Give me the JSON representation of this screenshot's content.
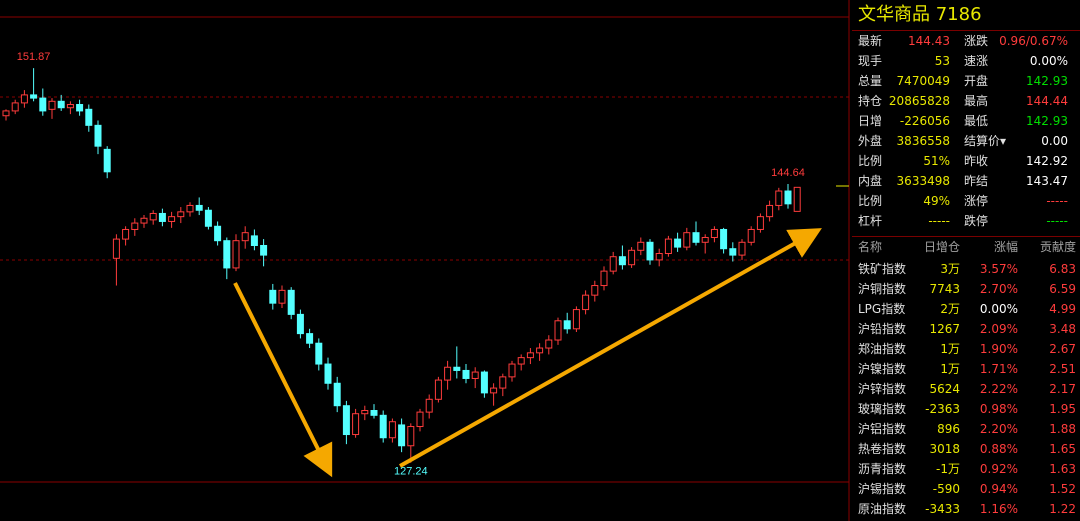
{
  "chart_data": {
    "type": "candlestick",
    "ylim": [
      126.1,
      155.0
    ],
    "up_color": "#ff3c3c",
    "down_color": "#54ffff",
    "open": [
      148.9,
      149.2,
      149.7,
      150.2,
      150.0,
      149.3,
      149.8,
      149.4,
      149.6,
      149.3,
      148.3,
      146.8,
      140.0,
      141.2,
      141.8,
      142.2,
      142.4,
      142.8,
      142.3,
      142.6,
      142.9,
      143.3,
      143.0,
      142.0,
      141.1,
      139.4,
      141.1,
      141.4,
      140.8,
      138.0,
      137.2,
      138.0,
      136.5,
      135.3,
      134.7,
      133.4,
      132.2,
      130.8,
      129.0,
      130.3,
      130.5,
      130.2,
      128.8,
      129.6,
      128.3,
      129.5,
      130.4,
      131.2,
      132.4,
      133.2,
      133.0,
      132.5,
      132.9,
      131.6,
      131.9,
      132.6,
      133.4,
      133.8,
      134.1,
      134.4,
      134.9,
      136.1,
      135.6,
      136.8,
      137.7,
      138.3,
      139.2,
      140.1,
      139.6,
      140.5,
      141.0,
      139.9,
      140.3,
      141.2,
      140.7,
      141.6,
      141.0,
      141.3,
      141.8,
      140.6,
      140.2,
      141.0,
      141.8,
      142.6,
      143.3,
      144.2,
      142.93
    ],
    "high": [
      149.3,
      149.9,
      150.5,
      151.87,
      150.6,
      150.0,
      150.2,
      149.8,
      149.9,
      149.6,
      148.6,
      147.0,
      141.5,
      142.0,
      142.5,
      142.7,
      143.0,
      143.1,
      142.9,
      143.2,
      143.5,
      143.8,
      143.2,
      142.3,
      141.3,
      141.5,
      142.0,
      141.8,
      141.2,
      138.4,
      138.3,
      138.2,
      136.8,
      135.6,
      135.0,
      133.8,
      132.6,
      131.1,
      130.6,
      130.8,
      130.9,
      130.5,
      130.0,
      130.0,
      129.7,
      130.6,
      131.5,
      132.6,
      133.6,
      134.5,
      133.4,
      133.2,
      133.0,
      132.2,
      132.8,
      133.6,
      134.0,
      134.4,
      134.7,
      135.2,
      136.3,
      136.6,
      137.0,
      138.0,
      138.6,
      139.5,
      140.4,
      140.8,
      140.7,
      141.3,
      141.2,
      140.6,
      141.4,
      141.6,
      141.9,
      142.3,
      141.5,
      142.0,
      141.9,
      141.0,
      141.2,
      142.0,
      142.8,
      143.6,
      144.4,
      144.64,
      144.44
    ],
    "low": [
      148.6,
      149.0,
      149.4,
      149.8,
      148.9,
      148.7,
      149.2,
      149.0,
      148.9,
      147.9,
      146.5,
      145.0,
      138.3,
      140.8,
      141.4,
      141.9,
      142.1,
      142.0,
      141.9,
      142.2,
      142.6,
      142.7,
      141.8,
      140.8,
      138.7,
      139.2,
      140.6,
      140.5,
      139.5,
      136.8,
      136.9,
      136.2,
      135.0,
      134.4,
      133.0,
      131.8,
      130.4,
      128.4,
      128.8,
      129.9,
      130.0,
      128.5,
      128.5,
      127.9,
      127.24,
      129.2,
      130.0,
      131.0,
      131.8,
      132.5,
      132.2,
      131.9,
      131.3,
      130.8,
      131.4,
      132.3,
      133.0,
      133.4,
      133.6,
      134.0,
      134.6,
      135.3,
      135.4,
      136.5,
      137.3,
      138.0,
      139.0,
      139.3,
      139.4,
      140.2,
      139.6,
      139.5,
      140.1,
      140.4,
      140.5,
      140.8,
      140.3,
      141.0,
      140.3,
      139.8,
      139.9,
      140.8,
      141.6,
      142.3,
      143.0,
      143.1,
      142.93
    ],
    "close": [
      149.2,
      149.7,
      150.2,
      150.0,
      149.2,
      149.8,
      149.4,
      149.6,
      149.2,
      148.3,
      147.0,
      145.4,
      141.2,
      141.8,
      142.2,
      142.5,
      142.8,
      142.3,
      142.6,
      142.9,
      143.3,
      143.0,
      142.0,
      141.1,
      139.4,
      141.1,
      141.6,
      140.8,
      140.2,
      137.2,
      138.0,
      136.5,
      135.3,
      134.7,
      133.4,
      132.2,
      130.8,
      129.0,
      130.3,
      130.5,
      130.2,
      128.8,
      129.8,
      128.3,
      129.5,
      130.4,
      131.2,
      132.4,
      133.2,
      133.0,
      132.5,
      132.9,
      131.6,
      131.9,
      132.6,
      133.4,
      133.8,
      134.1,
      134.4,
      134.9,
      136.1,
      135.6,
      136.8,
      137.7,
      138.3,
      139.2,
      140.1,
      139.6,
      140.5,
      141.0,
      139.9,
      140.3,
      141.2,
      140.7,
      141.6,
      141.0,
      141.3,
      141.8,
      140.6,
      140.2,
      141.0,
      141.8,
      142.6,
      143.3,
      144.2,
      143.4,
      144.43
    ],
    "price_labels": [
      151.87,
      144.64,
      127.24
    ]
  },
  "panel": {
    "title": "文华商品  7186",
    "quote_rows": [
      [
        {
          "text": "最新"
        },
        {
          "text": "144.43",
          "color": "#ff3c3c"
        },
        {
          "text": "涨跌"
        },
        {
          "text": "0.96/0.67%",
          "color": "#ff3c3c"
        }
      ],
      [
        {
          "text": "现手"
        },
        {
          "text": "53",
          "color": "#e8e800"
        },
        {
          "text": "速涨"
        },
        {
          "text": "0.00%",
          "color": "#ffffff"
        }
      ],
      [
        {
          "text": "总量"
        },
        {
          "text": "7470049",
          "color": "#e8e800"
        },
        {
          "text": "开盘"
        },
        {
          "text": "142.93",
          "color": "#00e000"
        }
      ],
      [
        {
          "text": "持仓"
        },
        {
          "text": "20865828",
          "color": "#e8e800"
        },
        {
          "text": "最高"
        },
        {
          "text": "144.44",
          "color": "#ff3c3c"
        }
      ],
      [
        {
          "text": "日增"
        },
        {
          "text": "-226056",
          "color": "#e8e800"
        },
        {
          "text": "最低"
        },
        {
          "text": "142.93",
          "color": "#00e000"
        }
      ],
      [
        {
          "text": "外盘"
        },
        {
          "text": "3836558",
          "color": "#e8e800"
        },
        {
          "text": "结算价▾"
        },
        {
          "text": "0.00",
          "color": "#ffffff"
        }
      ],
      [
        {
          "text": "比例"
        },
        {
          "text": "51%",
          "color": "#e8e800"
        },
        {
          "text": "昨收"
        },
        {
          "text": "142.92",
          "color": "#ffffff"
        }
      ],
      [
        {
          "text": "内盘"
        },
        {
          "text": "3633498",
          "color": "#e8e800"
        },
        {
          "text": "昨结"
        },
        {
          "text": "143.47",
          "color": "#ffffff"
        }
      ],
      [
        {
          "text": "比例"
        },
        {
          "text": "49%",
          "color": "#e8e800"
        },
        {
          "text": "涨停"
        },
        {
          "text": "-----",
          "color": "#ff3c3c"
        }
      ],
      [
        {
          "text": "杠杆"
        },
        {
          "text": "-----",
          "color": "#e8e800"
        },
        {
          "text": "跌停"
        },
        {
          "text": "-----",
          "color": "#00e000"
        }
      ]
    ],
    "rank_header": [
      "名称",
      "日增仓",
      "涨幅",
      "贡献度"
    ],
    "rank_rows": [
      [
        {
          "text": "铁矿指数"
        },
        {
          "text": "3万"
        },
        {
          "text": "3.57%",
          "color": "#ff3c3c"
        },
        {
          "text": "6.83",
          "color": "#ff3c3c"
        }
      ],
      [
        {
          "text": "沪铜指数"
        },
        {
          "text": "7743"
        },
        {
          "text": "2.70%",
          "color": "#ff3c3c"
        },
        {
          "text": "6.59",
          "color": "#ff3c3c"
        }
      ],
      [
        {
          "text": "LPG指数"
        },
        {
          "text": "2万"
        },
        {
          "text": "0.00%",
          "color": "#ffffff"
        },
        {
          "text": "4.99",
          "color": "#ff3c3c"
        }
      ],
      [
        {
          "text": "沪铅指数"
        },
        {
          "text": "1267"
        },
        {
          "text": "2.09%",
          "color": "#ff3c3c"
        },
        {
          "text": "3.48",
          "color": "#ff3c3c"
        }
      ],
      [
        {
          "text": "郑油指数"
        },
        {
          "text": "1万"
        },
        {
          "text": "1.90%",
          "color": "#ff3c3c"
        },
        {
          "text": "2.67",
          "color": "#ff3c3c"
        }
      ],
      [
        {
          "text": "沪镍指数"
        },
        {
          "text": "1万"
        },
        {
          "text": "1.71%",
          "color": "#ff3c3c"
        },
        {
          "text": "2.51",
          "color": "#ff3c3c"
        }
      ],
      [
        {
          "text": "沪锌指数"
        },
        {
          "text": "5624"
        },
        {
          "text": "2.22%",
          "color": "#ff3c3c"
        },
        {
          "text": "2.17",
          "color": "#ff3c3c"
        }
      ],
      [
        {
          "text": "玻璃指数"
        },
        {
          "text": "-2363"
        },
        {
          "text": "0.98%",
          "color": "#ff3c3c"
        },
        {
          "text": "1.95",
          "color": "#ff3c3c"
        }
      ],
      [
        {
          "text": "沪铝指数"
        },
        {
          "text": "896"
        },
        {
          "text": "2.20%",
          "color": "#ff3c3c"
        },
        {
          "text": "1.88",
          "color": "#ff3c3c"
        }
      ],
      [
        {
          "text": "热卷指数"
        },
        {
          "text": "3018"
        },
        {
          "text": "0.88%",
          "color": "#ff3c3c"
        },
        {
          "text": "1.65",
          "color": "#ff3c3c"
        }
      ],
      [
        {
          "text": "沥青指数"
        },
        {
          "text": "-1万"
        },
        {
          "text": "0.92%",
          "color": "#ff3c3c"
        },
        {
          "text": "1.63",
          "color": "#ff3c3c"
        }
      ],
      [
        {
          "text": "沪锡指数"
        },
        {
          "text": "-590"
        },
        {
          "text": "0.94%",
          "color": "#ff3c3c"
        },
        {
          "text": "1.52",
          "color": "#ff3c3c"
        }
      ],
      [
        {
          "text": "原油指数"
        },
        {
          "text": "-3433"
        },
        {
          "text": "1.16%",
          "color": "#ff3c3c"
        },
        {
          "text": "1.22",
          "color": "#ff3c3c"
        }
      ]
    ]
  }
}
